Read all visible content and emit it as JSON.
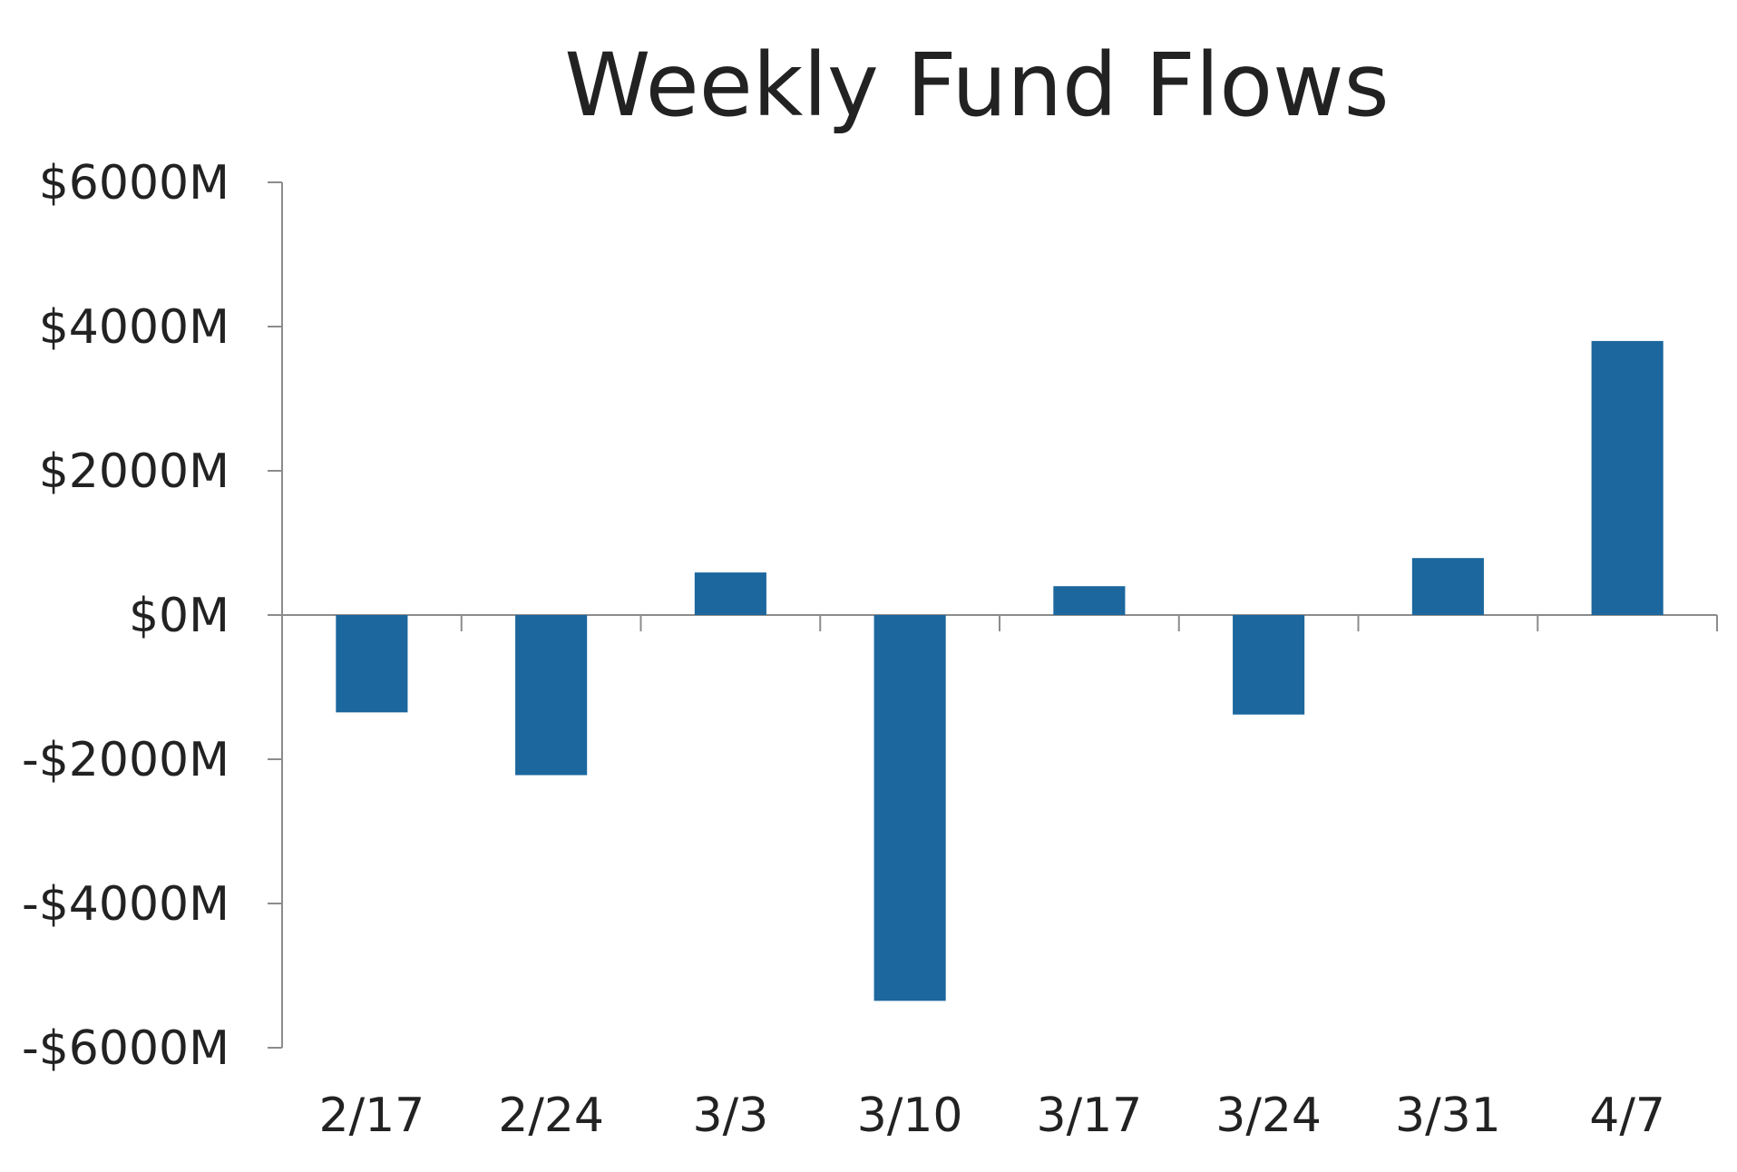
{
  "chart_data": {
    "type": "bar",
    "title": "Weekly Fund Flows",
    "xlabel": "",
    "ylabel": "",
    "categories": [
      "2/17",
      "2/24",
      "3/3",
      "3/10",
      "3/17",
      "3/24",
      "3/31",
      "4/7"
    ],
    "values": [
      -1350,
      -2220,
      590,
      -5350,
      400,
      -1380,
      790,
      3800
    ],
    "ylim": [
      -6000,
      6000
    ],
    "yticks": [
      6000,
      4000,
      2000,
      0,
      -2000,
      -4000,
      -6000
    ],
    "ytick_labels": [
      "$6000M",
      "$4000M",
      "$2000M",
      "$0M",
      "-$2000M",
      "-$4000M",
      "-$6000M"
    ],
    "grid": false,
    "legend": "none",
    "colors": {
      "bar": "#1b679e",
      "axis": "#8c8c8c",
      "text": "#222222"
    }
  }
}
